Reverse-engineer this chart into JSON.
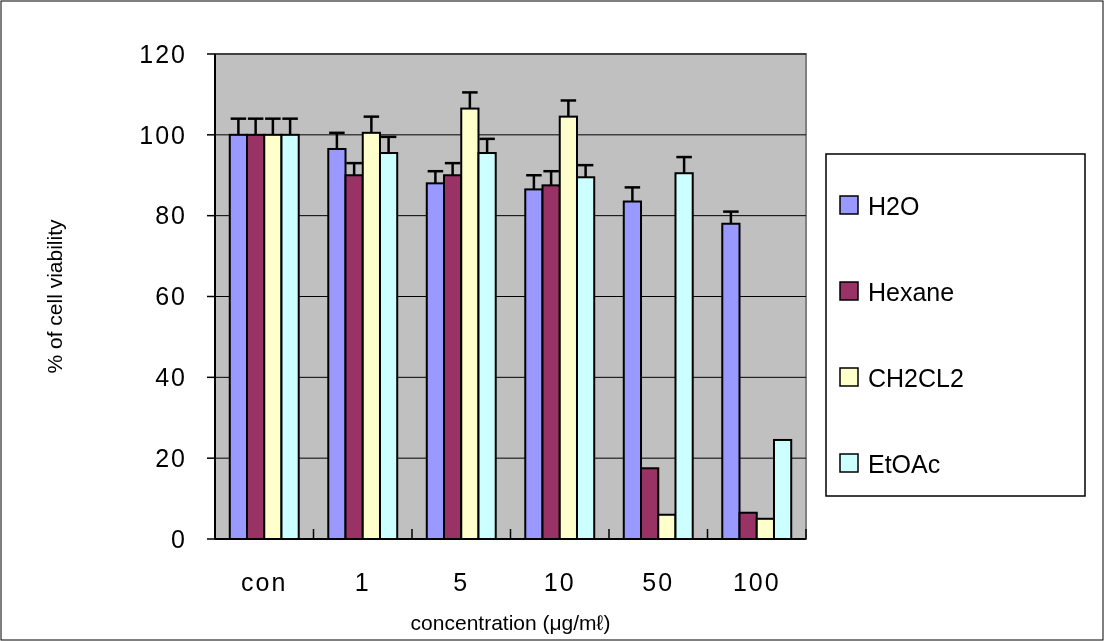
{
  "chart_data": {
    "type": "bar",
    "xlabel": "concentration (μg/mℓ)",
    "ylabel": "% of cell viability",
    "categories": [
      "con",
      "1",
      "5",
      "10",
      "50",
      "100"
    ],
    "series": [
      {
        "name": "H2O",
        "color": "#9999ff",
        "values": [
          100,
          96.5,
          88,
          86.5,
          83.5,
          78
        ],
        "errors": [
          4,
          4,
          3,
          3.5,
          3.5,
          3
        ]
      },
      {
        "name": "Hexane",
        "color": "#993366",
        "values": [
          100,
          90,
          90,
          87.5,
          17.5,
          6.5
        ],
        "errors": [
          4,
          3,
          3,
          3.5,
          null,
          null
        ]
      },
      {
        "name": "CH2CL2",
        "color": "#ffffcc",
        "values": [
          100,
          100.5,
          106.5,
          104.5,
          6,
          5
        ],
        "errors": [
          4,
          4,
          4,
          4,
          null,
          null
        ]
      },
      {
        "name": "EtOAc",
        "color": "#ccffff",
        "values": [
          100,
          95.5,
          95.5,
          89.5,
          90.5,
          24.5
        ],
        "errors": [
          4,
          4,
          3.5,
          3,
          4,
          null
        ]
      }
    ],
    "ylim": [
      0,
      120
    ],
    "yticks": [
      0,
      20,
      40,
      60,
      80,
      100,
      120
    ],
    "grid": "y",
    "legend": "right"
  }
}
